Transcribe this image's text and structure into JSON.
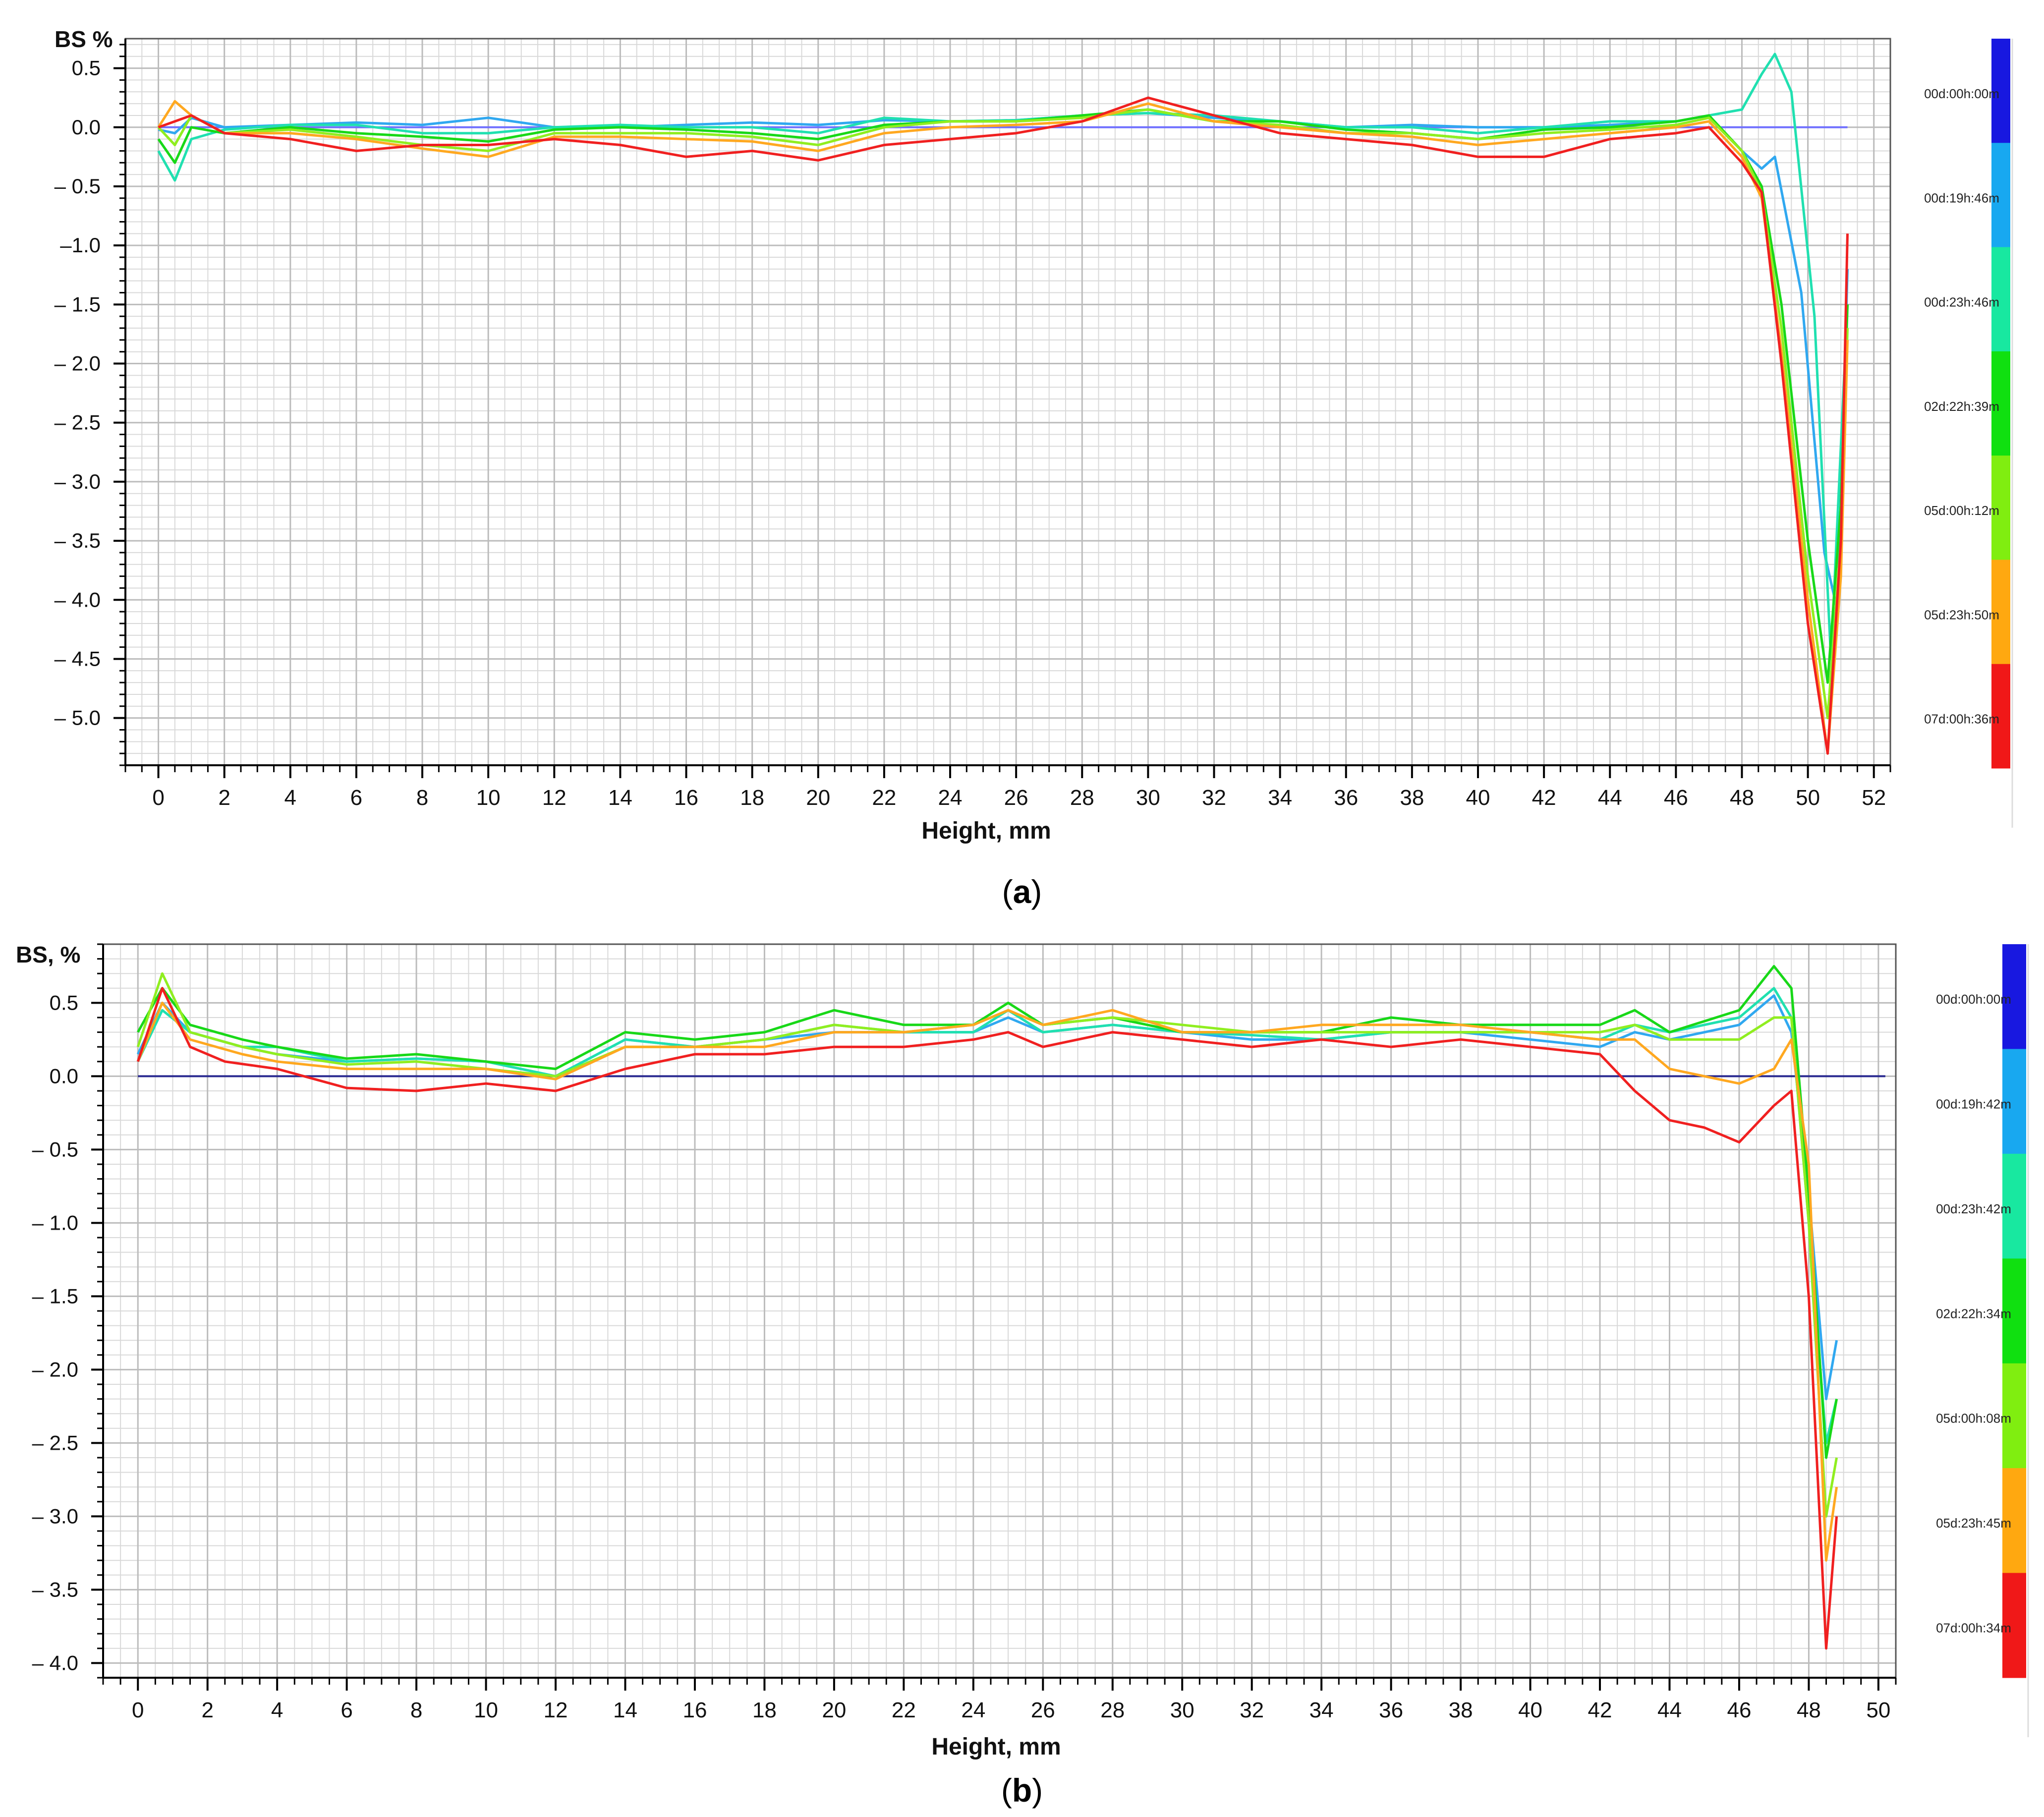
{
  "chart_data": [
    {
      "panel": "a",
      "caption_prefix": "(",
      "caption_letter": "a",
      "caption_suffix": ")",
      "type": "line",
      "ylabel": "BS %",
      "xlabel": "Height, mm",
      "xlim": [
        -1,
        52.5
      ],
      "ylim": [
        -5.4,
        0.75
      ],
      "xticks": [
        0,
        2,
        4,
        6,
        8,
        10,
        12,
        14,
        16,
        18,
        20,
        22,
        24,
        26,
        28,
        30,
        32,
        34,
        36,
        38,
        40,
        42,
        44,
        46,
        48,
        50,
        52
      ],
      "xtick_labels": [
        "0",
        "2",
        "4",
        "6",
        "8",
        "10",
        "12",
        "14",
        "16",
        "18",
        "20",
        "22",
        "24",
        "26",
        "28",
        "30",
        "32",
        "34",
        "36",
        "38",
        "40",
        "42",
        "44",
        "46",
        "48",
        "50",
        "52"
      ],
      "yticks": [
        0.5,
        0.0,
        -0.5,
        -1.0,
        -1.5,
        -2.0,
        -2.5,
        -3.0,
        -3.5,
        -4.0,
        -4.5,
        -5.0
      ],
      "ytick_labels": [
        "0.5",
        "0.0",
        "– 0.5",
        "–1.0",
        "– 1.5",
        "– 2.0",
        "– 2.5",
        "– 3.0",
        "– 3.5",
        "– 4.0",
        "– 4.5",
        "– 5.0"
      ],
      "grid": true,
      "legend": "colorbar-right",
      "legend_entries": [
        {
          "label": "00d:00h:00m",
          "color": "#1818e0"
        },
        {
          "label": "00d:19h:46m",
          "color": "#18a8f0"
        },
        {
          "label": "00d:23h:46m",
          "color": "#18e8a0"
        },
        {
          "label": "02d:22h:39m",
          "color": "#10e010"
        },
        {
          "label": "05d:00h:12m",
          "color": "#80ee10"
        },
        {
          "label": "05d:23h:50m",
          "color": "#ffa810"
        },
        {
          "label": "07d:00h:36m",
          "color": "#f01818"
        }
      ],
      "series": [
        {
          "color": "#7070ff",
          "x": [
            0,
            51.2
          ],
          "y": [
            0,
            0
          ]
        },
        {
          "color": "#30a8f0",
          "x": [
            0,
            0.5,
            1,
            2,
            4,
            6,
            8,
            10,
            12,
            14,
            16,
            18,
            20,
            22,
            24,
            26,
            28,
            30,
            32,
            34,
            36,
            38,
            40,
            42,
            44,
            46,
            47,
            48,
            48.6,
            49,
            49.8,
            50.5,
            50.9,
            51.2
          ],
          "y": [
            -0.02,
            -0.05,
            0.08,
            0.0,
            0.02,
            0.04,
            0.02,
            0.08,
            0.0,
            0.0,
            0.02,
            0.04,
            0.02,
            0.06,
            0.05,
            0.06,
            0.1,
            0.12,
            0.08,
            0.05,
            0.0,
            0.02,
            0.0,
            0.0,
            0.02,
            0.05,
            0.1,
            -0.2,
            -0.35,
            -0.25,
            -1.4,
            -3.6,
            -4.1,
            -1.2
          ]
        },
        {
          "color": "#20e0b0",
          "x": [
            0,
            0.5,
            1,
            2,
            4,
            6,
            8,
            10,
            12,
            14,
            16,
            18,
            20,
            22,
            24,
            26,
            28,
            30,
            32,
            34,
            36,
            38,
            40,
            42,
            44,
            46,
            47,
            48,
            48.6,
            49,
            49.5,
            50.2,
            50.7,
            51.2
          ],
          "y": [
            -0.2,
            -0.45,
            -0.1,
            -0.02,
            0.02,
            0.02,
            -0.05,
            -0.05,
            0.0,
            0.02,
            0.0,
            0.0,
            -0.05,
            0.08,
            0.05,
            0.06,
            0.1,
            0.12,
            0.1,
            0.05,
            0.0,
            0.0,
            -0.05,
            0.0,
            0.05,
            0.05,
            0.1,
            0.15,
            0.45,
            0.62,
            0.3,
            -1.6,
            -4.5,
            -1.5
          ]
        },
        {
          "color": "#18d818",
          "x": [
            0,
            0.5,
            1,
            2,
            4,
            6,
            8,
            10,
            12,
            14,
            16,
            18,
            20,
            22,
            24,
            26,
            28,
            30,
            32,
            34,
            36,
            38,
            40,
            42,
            44,
            46,
            47,
            48,
            48.6,
            49.2,
            50,
            50.6,
            51,
            51.2
          ],
          "y": [
            -0.1,
            -0.3,
            0.0,
            -0.05,
            0.0,
            -0.05,
            -0.08,
            -0.12,
            -0.02,
            0.0,
            -0.02,
            -0.05,
            -0.1,
            0.02,
            0.05,
            0.05,
            0.1,
            0.15,
            0.05,
            0.05,
            -0.02,
            -0.05,
            -0.1,
            -0.02,
            0.0,
            0.05,
            0.1,
            -0.2,
            -0.5,
            -1.5,
            -3.5,
            -4.7,
            -3.2,
            -1.5
          ]
        },
        {
          "color": "#90ee20",
          "x": [
            0,
            0.5,
            1,
            2,
            4,
            6,
            8,
            10,
            12,
            14,
            16,
            18,
            20,
            22,
            24,
            26,
            28,
            30,
            32,
            34,
            36,
            38,
            40,
            42,
            44,
            46,
            47,
            48,
            48.6,
            49.2,
            50,
            50.6,
            51,
            51.2
          ],
          "y": [
            0.0,
            -0.15,
            0.1,
            -0.05,
            -0.02,
            -0.08,
            -0.15,
            -0.2,
            -0.05,
            -0.05,
            -0.05,
            -0.08,
            -0.15,
            0.0,
            0.05,
            0.05,
            0.08,
            0.15,
            0.05,
            0.02,
            -0.05,
            -0.05,
            -0.1,
            -0.05,
            -0.02,
            0.02,
            0.08,
            -0.2,
            -0.55,
            -1.7,
            -3.8,
            -5.0,
            -3.5,
            -1.7
          ]
        },
        {
          "color": "#ffa820",
          "x": [
            0,
            0.5,
            1,
            2,
            4,
            6,
            8,
            10,
            12,
            14,
            16,
            18,
            20,
            22,
            24,
            26,
            28,
            30,
            32,
            34,
            36,
            38,
            40,
            42,
            44,
            46,
            47,
            48,
            48.6,
            49.2,
            50,
            50.6,
            51,
            51.2
          ],
          "y": [
            0.0,
            0.22,
            0.1,
            -0.05,
            -0.05,
            -0.1,
            -0.18,
            -0.25,
            -0.08,
            -0.08,
            -0.1,
            -0.12,
            -0.2,
            -0.05,
            0.0,
            0.02,
            0.05,
            0.2,
            0.05,
            0.0,
            -0.05,
            -0.08,
            -0.15,
            -0.1,
            -0.05,
            0.0,
            0.05,
            -0.25,
            -0.6,
            -1.9,
            -4.0,
            -5.3,
            -3.8,
            -1.8
          ]
        },
        {
          "color": "#f02020",
          "x": [
            0,
            0.5,
            1,
            2,
            4,
            6,
            8,
            10,
            12,
            14,
            16,
            18,
            20,
            22,
            24,
            26,
            28,
            30,
            32,
            34,
            36,
            38,
            40,
            42,
            44,
            46,
            47,
            48,
            48.6,
            49.2,
            50,
            50.6,
            51,
            51.2
          ],
          "y": [
            0.0,
            0.05,
            0.1,
            -0.05,
            -0.1,
            -0.2,
            -0.15,
            -0.15,
            -0.1,
            -0.15,
            -0.25,
            -0.2,
            -0.28,
            -0.15,
            -0.1,
            -0.05,
            0.05,
            0.25,
            0.1,
            -0.05,
            -0.1,
            -0.15,
            -0.25,
            -0.25,
            -0.1,
            -0.05,
            0.0,
            -0.3,
            -0.55,
            -2.0,
            -4.2,
            -5.3,
            -3.5,
            -0.9
          ]
        }
      ]
    },
    {
      "panel": "b",
      "caption_prefix": "(",
      "caption_letter": "b",
      "caption_suffix": ")",
      "type": "line",
      "ylabel": "BS, %",
      "xlabel": "Height, mm",
      "xlim": [
        -1,
        50.5
      ],
      "ylim": [
        -4.1,
        0.9
      ],
      "xticks": [
        0,
        2,
        4,
        6,
        8,
        10,
        12,
        14,
        16,
        18,
        20,
        22,
        24,
        26,
        28,
        30,
        32,
        34,
        36,
        38,
        40,
        42,
        44,
        46,
        48,
        50
      ],
      "xtick_labels": [
        "0",
        "2",
        "4",
        "6",
        "8",
        "10",
        "12",
        "14",
        "16",
        "18",
        "20",
        "22",
        "24",
        "26",
        "28",
        "30",
        "32",
        "34",
        "36",
        "38",
        "40",
        "42",
        "44",
        "46",
        "48",
        "50"
      ],
      "yticks": [
        0.5,
        0.0,
        -0.5,
        -1.0,
        -1.5,
        -2.0,
        -2.5,
        -3.0,
        -3.5,
        -4.0
      ],
      "ytick_labels": [
        "0.5",
        "0.0",
        "– 0.5",
        "– 1.0",
        "– 1.5",
        "– 2.0",
        "– 2.5",
        "– 3.0",
        "– 3.5",
        "– 4.0"
      ],
      "grid": true,
      "legend": "colorbar-right",
      "legend_entries": [
        {
          "label": "00d:00h:00m",
          "color": "#1818e0"
        },
        {
          "label": "00d:19h:42m",
          "color": "#18a8f0"
        },
        {
          "label": "00d:23h:42m",
          "color": "#18e8a0"
        },
        {
          "label": "02d:22h:34m",
          "color": "#10e010"
        },
        {
          "label": "05d:00h:08m",
          "color": "#80ee10"
        },
        {
          "label": "05d:23h:45m",
          "color": "#ffa810"
        },
        {
          "label": "07d:00h:34m",
          "color": "#f01818"
        }
      ],
      "series": [
        {
          "color": "#2a2a90",
          "x": [
            0,
            50.2
          ],
          "y": [
            0,
            0
          ]
        },
        {
          "color": "#30a8f0",
          "x": [
            0,
            0.7,
            1.5,
            3,
            4,
            6,
            8,
            10,
            12,
            14,
            16,
            18,
            20,
            22,
            24,
            25,
            26,
            28,
            30,
            32,
            34,
            36,
            38,
            40,
            42,
            43,
            44,
            46,
            47,
            47.5,
            48,
            48.5,
            48.8
          ],
          "y": [
            0.15,
            0.5,
            0.3,
            0.2,
            0.15,
            0.1,
            0.12,
            0.1,
            0.0,
            0.25,
            0.2,
            0.25,
            0.3,
            0.3,
            0.3,
            0.4,
            0.3,
            0.35,
            0.3,
            0.25,
            0.25,
            0.3,
            0.3,
            0.25,
            0.2,
            0.3,
            0.25,
            0.35,
            0.55,
            0.3,
            -0.8,
            -2.2,
            -1.8
          ]
        },
        {
          "color": "#20e0b0",
          "x": [
            0,
            0.7,
            1.5,
            3,
            4,
            6,
            8,
            10,
            12,
            14,
            16,
            18,
            20,
            22,
            24,
            25,
            26,
            28,
            30,
            32,
            34,
            36,
            38,
            40,
            42,
            43,
            44,
            46,
            47,
            47.5,
            48,
            48.5,
            48.8
          ],
          "y": [
            0.1,
            0.45,
            0.3,
            0.2,
            0.2,
            0.1,
            0.12,
            0.1,
            0.0,
            0.25,
            0.2,
            0.25,
            0.35,
            0.3,
            0.3,
            0.45,
            0.3,
            0.35,
            0.3,
            0.28,
            0.25,
            0.3,
            0.3,
            0.3,
            0.25,
            0.35,
            0.3,
            0.4,
            0.6,
            0.4,
            -1.0,
            -2.5,
            -2.2
          ]
        },
        {
          "color": "#18d818",
          "x": [
            0,
            0.7,
            1.5,
            3,
            4,
            6,
            8,
            10,
            12,
            14,
            16,
            18,
            20,
            22,
            24,
            25,
            26,
            28,
            30,
            32,
            34,
            36,
            38,
            40,
            42,
            43,
            44,
            46,
            47,
            47.5,
            48,
            48.5,
            48.8
          ],
          "y": [
            0.3,
            0.6,
            0.35,
            0.25,
            0.2,
            0.12,
            0.15,
            0.1,
            0.05,
            0.3,
            0.25,
            0.3,
            0.45,
            0.35,
            0.35,
            0.5,
            0.35,
            0.4,
            0.3,
            0.3,
            0.3,
            0.4,
            0.35,
            0.35,
            0.35,
            0.45,
            0.3,
            0.45,
            0.75,
            0.6,
            -0.8,
            -2.6,
            -2.2
          ]
        },
        {
          "color": "#90ee20",
          "x": [
            0,
            0.7,
            1.5,
            3,
            4,
            6,
            8,
            10,
            12,
            14,
            16,
            18,
            20,
            22,
            24,
            25,
            26,
            28,
            30,
            32,
            34,
            36,
            38,
            40,
            42,
            43,
            44,
            46,
            47,
            47.5,
            48,
            48.5,
            48.8
          ],
          "y": [
            0.2,
            0.7,
            0.3,
            0.2,
            0.15,
            0.08,
            0.1,
            0.05,
            0.0,
            0.2,
            0.2,
            0.25,
            0.35,
            0.3,
            0.35,
            0.45,
            0.35,
            0.4,
            0.35,
            0.3,
            0.3,
            0.3,
            0.3,
            0.3,
            0.3,
            0.35,
            0.25,
            0.25,
            0.4,
            0.4,
            -1.0,
            -3.0,
            -2.6
          ]
        },
        {
          "color": "#ffa820",
          "x": [
            0,
            0.7,
            1.5,
            3,
            4,
            6,
            8,
            10,
            12,
            14,
            16,
            18,
            20,
            22,
            24,
            25,
            26,
            28,
            30,
            32,
            34,
            36,
            38,
            40,
            42,
            43,
            44,
            45,
            46,
            47,
            47.5,
            48,
            48.5,
            48.8
          ],
          "y": [
            0.1,
            0.5,
            0.25,
            0.15,
            0.1,
            0.05,
            0.05,
            0.05,
            -0.02,
            0.2,
            0.2,
            0.2,
            0.3,
            0.3,
            0.35,
            0.45,
            0.35,
            0.45,
            0.3,
            0.3,
            0.35,
            0.35,
            0.35,
            0.3,
            0.25,
            0.25,
            0.05,
            0.0,
            -0.05,
            0.05,
            0.25,
            -0.6,
            -3.3,
            -2.8
          ]
        },
        {
          "color": "#f02020",
          "x": [
            0,
            0.7,
            1.5,
            2.5,
            4,
            6,
            8,
            10,
            12,
            14,
            16,
            18,
            20,
            22,
            24,
            25,
            26,
            28,
            30,
            32,
            34,
            36,
            38,
            40,
            42,
            43,
            44,
            45,
            46,
            47,
            47.5,
            48,
            48.5,
            48.8
          ],
          "y": [
            0.1,
            0.6,
            0.2,
            0.1,
            0.05,
            -0.08,
            -0.1,
            -0.05,
            -0.1,
            0.05,
            0.15,
            0.15,
            0.2,
            0.2,
            0.25,
            0.3,
            0.2,
            0.3,
            0.25,
            0.2,
            0.25,
            0.2,
            0.25,
            0.2,
            0.15,
            -0.1,
            -0.3,
            -0.35,
            -0.45,
            -0.2,
            -0.1,
            -1.5,
            -3.9,
            -3.0
          ]
        }
      ]
    }
  ]
}
